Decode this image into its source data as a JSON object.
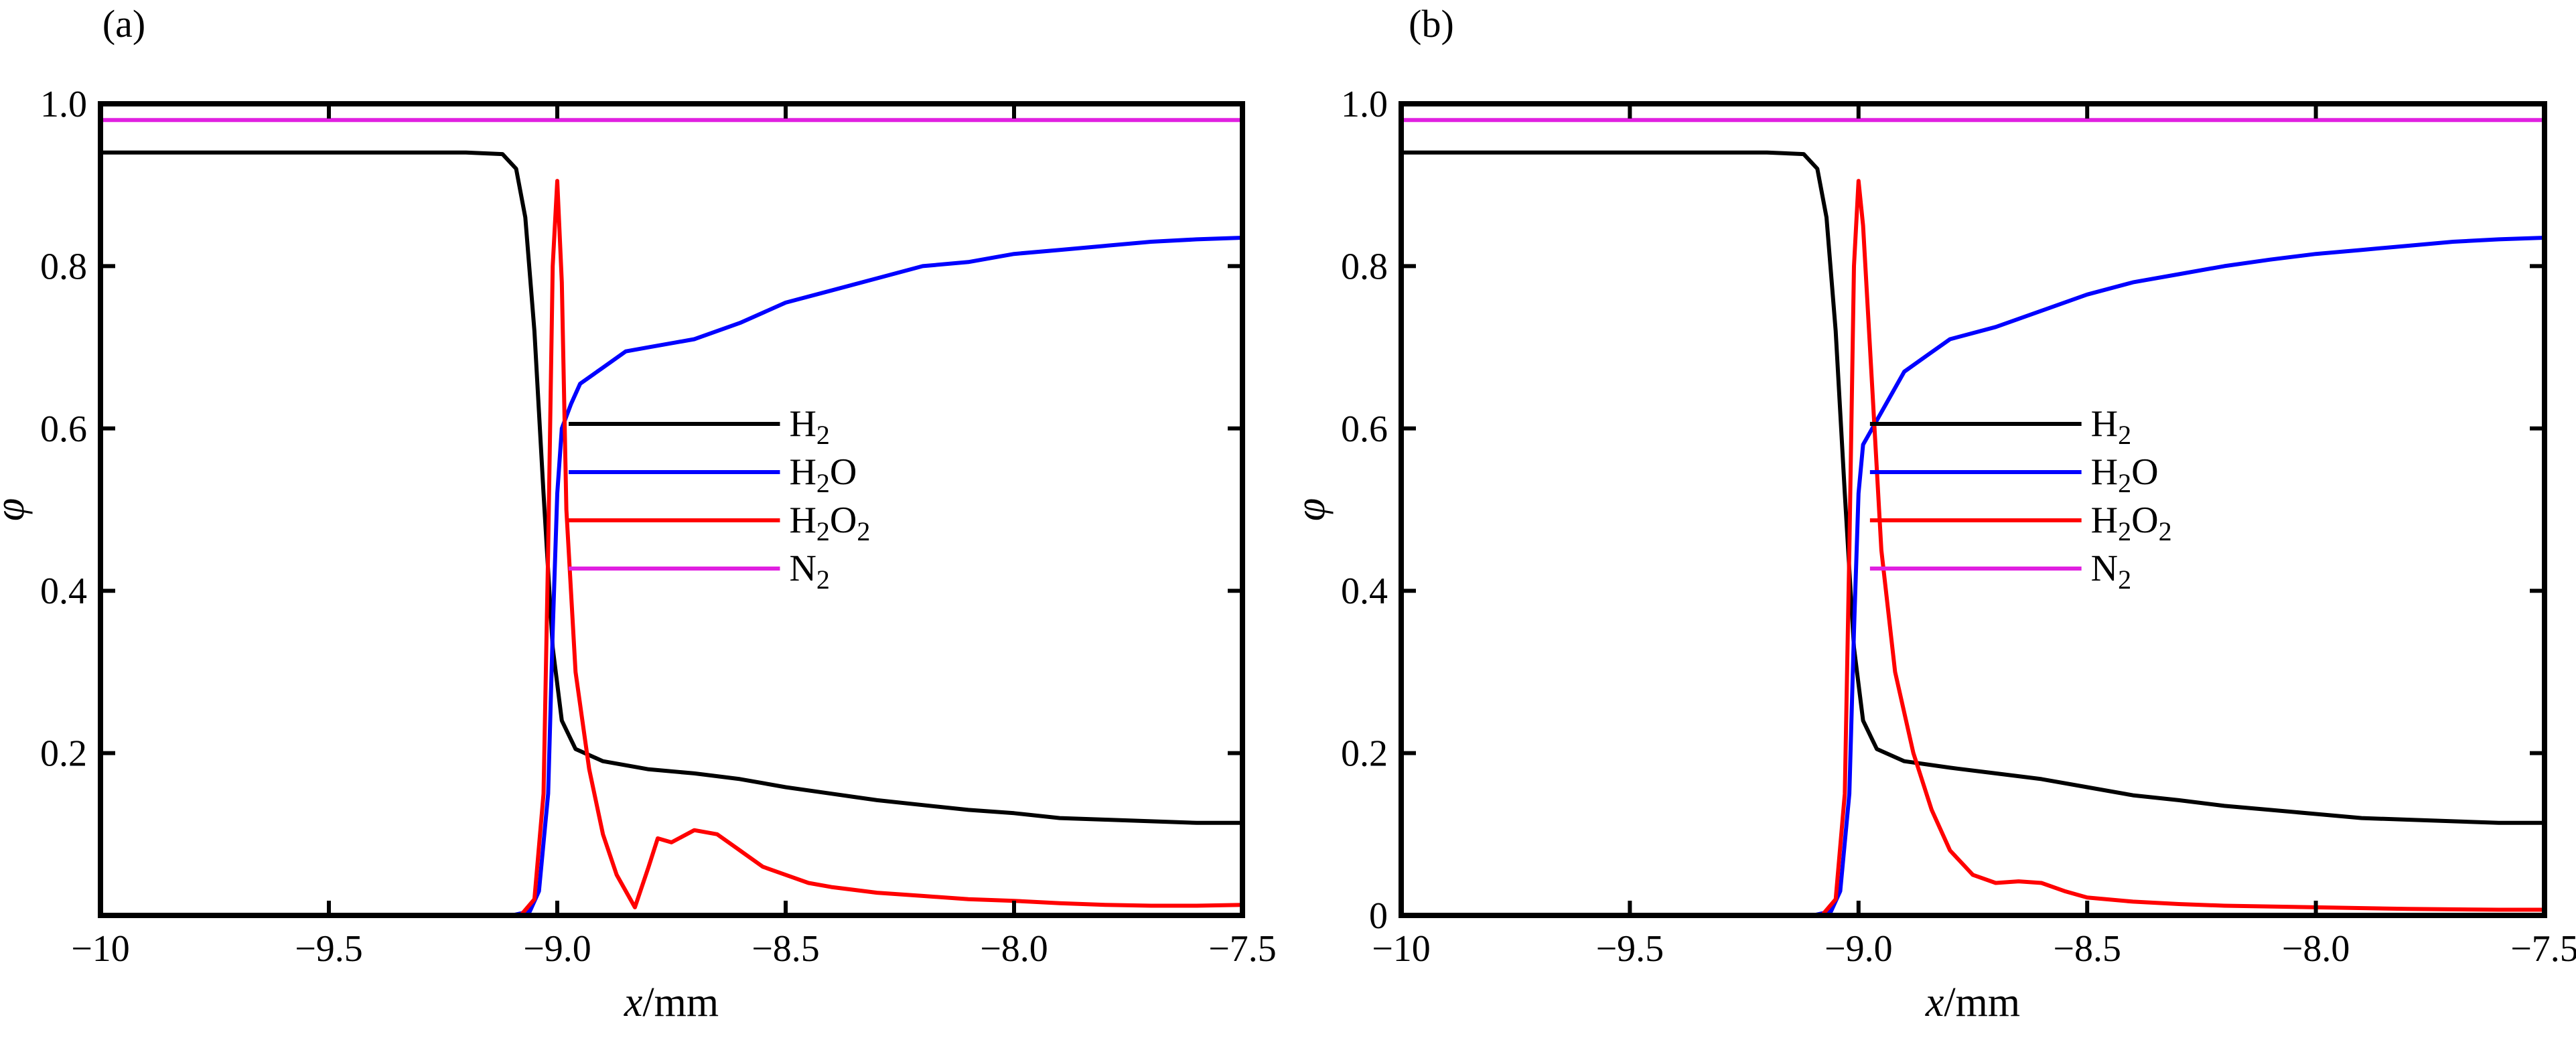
{
  "chart_data": [
    {
      "panel_label": "(a)",
      "type": "line",
      "xlabel_var": "x",
      "xlabel_unit": "/mm",
      "ylabel": "φ",
      "xlim": [
        -10,
        -7.5
      ],
      "ylim": [
        0,
        1.0
      ],
      "x_ticks": [
        "−10",
        "−9.5",
        "−9.0",
        "−8.5",
        "−8.0",
        "−7.5"
      ],
      "x_tick_values": [
        -10,
        -9.5,
        -9.0,
        -8.5,
        -8.0,
        -7.5
      ],
      "y_ticks": [
        "0.2",
        "0.4",
        "0.6",
        "0.8",
        "1.0"
      ],
      "y_tick_values": [
        0.2,
        0.4,
        0.6,
        0.8,
        1.0
      ],
      "legend_position": "center-right",
      "series": [
        {
          "name": "H2",
          "label_main": "H",
          "label_sub": "2",
          "label_tail": "",
          "color": "#000000",
          "points": [
            [
              -10,
              0.94
            ],
            [
              -9.5,
              0.94
            ],
            [
              -9.2,
              0.94
            ],
            [
              -9.12,
              0.938
            ],
            [
              -9.09,
              0.92
            ],
            [
              -9.07,
              0.86
            ],
            [
              -9.05,
              0.72
            ],
            [
              -9.03,
              0.52
            ],
            [
              -9.01,
              0.33
            ],
            [
              -8.99,
              0.24
            ],
            [
              -8.96,
              0.205
            ],
            [
              -8.9,
              0.19
            ],
            [
              -8.8,
              0.18
            ],
            [
              -8.7,
              0.175
            ],
            [
              -8.6,
              0.168
            ],
            [
              -8.5,
              0.158
            ],
            [
              -8.4,
              0.15
            ],
            [
              -8.3,
              0.142
            ],
            [
              -8.2,
              0.136
            ],
            [
              -8.1,
              0.13
            ],
            [
              -8.0,
              0.126
            ],
            [
              -7.9,
              0.12
            ],
            [
              -7.8,
              0.118
            ],
            [
              -7.7,
              0.116
            ],
            [
              -7.6,
              0.114
            ],
            [
              -7.5,
              0.114
            ]
          ]
        },
        {
          "name": "H2O",
          "label_main": "H",
          "label_sub": "2",
          "label_tail": "O",
          "color": "#0000ff",
          "points": [
            [
              -10,
              0.0
            ],
            [
              -9.5,
              0.0
            ],
            [
              -9.1,
              0.0
            ],
            [
              -9.06,
              0.005
            ],
            [
              -9.04,
              0.03
            ],
            [
              -9.02,
              0.15
            ],
            [
              -9.01,
              0.35
            ],
            [
              -9.0,
              0.52
            ],
            [
              -8.99,
              0.6
            ],
            [
              -8.97,
              0.63
            ],
            [
              -8.95,
              0.655
            ],
            [
              -8.9,
              0.675
            ],
            [
              -8.85,
              0.695
            ],
            [
              -8.8,
              0.7
            ],
            [
              -8.7,
              0.71
            ],
            [
              -8.6,
              0.73
            ],
            [
              -8.5,
              0.755
            ],
            [
              -8.4,
              0.77
            ],
            [
              -8.3,
              0.785
            ],
            [
              -8.2,
              0.8
            ],
            [
              -8.1,
              0.805
            ],
            [
              -8.0,
              0.815
            ],
            [
              -7.9,
              0.82
            ],
            [
              -7.8,
              0.825
            ],
            [
              -7.7,
              0.83
            ],
            [
              -7.6,
              0.833
            ],
            [
              -7.5,
              0.835
            ]
          ]
        },
        {
          "name": "H2O2",
          "label_main": "H",
          "label_sub": "2",
          "label_tail": "O",
          "label_sub2": "2",
          "color": "#ff0000",
          "points": [
            [
              -10,
              0.0
            ],
            [
              -9.5,
              0.0
            ],
            [
              -9.08,
              0.0
            ],
            [
              -9.05,
              0.02
            ],
            [
              -9.03,
              0.15
            ],
            [
              -9.02,
              0.45
            ],
            [
              -9.01,
              0.8
            ],
            [
              -9.0,
              0.905
            ],
            [
              -8.99,
              0.78
            ],
            [
              -8.98,
              0.5
            ],
            [
              -8.96,
              0.3
            ],
            [
              -8.93,
              0.18
            ],
            [
              -8.9,
              0.1
            ],
            [
              -8.87,
              0.05
            ],
            [
              -8.83,
              0.01
            ],
            [
              -8.8,
              0.06
            ],
            [
              -8.78,
              0.095
            ],
            [
              -8.75,
              0.09
            ],
            [
              -8.7,
              0.105
            ],
            [
              -8.65,
              0.1
            ],
            [
              -8.6,
              0.08
            ],
            [
              -8.55,
              0.06
            ],
            [
              -8.5,
              0.05
            ],
            [
              -8.45,
              0.04
            ],
            [
              -8.4,
              0.035
            ],
            [
              -8.3,
              0.028
            ],
            [
              -8.2,
              0.024
            ],
            [
              -8.1,
              0.02
            ],
            [
              -8.0,
              0.018
            ],
            [
              -7.9,
              0.015
            ],
            [
              -7.8,
              0.013
            ],
            [
              -7.7,
              0.012
            ],
            [
              -7.6,
              0.012
            ],
            [
              -7.5,
              0.013
            ]
          ]
        },
        {
          "name": "N2",
          "label_main": "N",
          "label_sub": "2",
          "label_tail": "",
          "color": "#e020e0",
          "points": [
            [
              -10,
              0.98
            ],
            [
              -7.5,
              0.98
            ]
          ]
        }
      ]
    },
    {
      "panel_label": "(b)",
      "type": "line",
      "xlabel_var": "x",
      "xlabel_unit": "/mm",
      "ylabel": "φ",
      "xlim": [
        -10,
        -7.5
      ],
      "ylim": [
        0,
        1.0
      ],
      "x_ticks": [
        "−10",
        "−9.5",
        "−9.0",
        "−8.5",
        "−8.0",
        "−7.5"
      ],
      "x_tick_values": [
        -10,
        -9.5,
        -9.0,
        -8.5,
        -8.0,
        -7.5
      ],
      "y_ticks": [
        "0",
        "0.2",
        "0.4",
        "0.6",
        "0.8",
        "1.0"
      ],
      "y_tick_values": [
        0,
        0.2,
        0.4,
        0.6,
        0.8,
        1.0
      ],
      "legend_position": "center-right",
      "series": [
        {
          "name": "H2",
          "label_main": "H",
          "label_sub": "2",
          "label_tail": "",
          "color": "#000000",
          "points": [
            [
              -10,
              0.94
            ],
            [
              -9.5,
              0.94
            ],
            [
              -9.2,
              0.94
            ],
            [
              -9.12,
              0.938
            ],
            [
              -9.09,
              0.92
            ],
            [
              -9.07,
              0.86
            ],
            [
              -9.05,
              0.72
            ],
            [
              -9.03,
              0.52
            ],
            [
              -9.01,
              0.33
            ],
            [
              -8.99,
              0.24
            ],
            [
              -8.96,
              0.205
            ],
            [
              -8.9,
              0.19
            ],
            [
              -8.8,
              0.182
            ],
            [
              -8.7,
              0.175
            ],
            [
              -8.6,
              0.168
            ],
            [
              -8.5,
              0.158
            ],
            [
              -8.4,
              0.148
            ],
            [
              -8.3,
              0.142
            ],
            [
              -8.2,
              0.135
            ],
            [
              -8.1,
              0.13
            ],
            [
              -8.0,
              0.125
            ],
            [
              -7.9,
              0.12
            ],
            [
              -7.8,
              0.118
            ],
            [
              -7.7,
              0.116
            ],
            [
              -7.6,
              0.114
            ],
            [
              -7.5,
              0.114
            ]
          ]
        },
        {
          "name": "H2O",
          "label_main": "H",
          "label_sub": "2",
          "label_tail": "O",
          "color": "#0000ff",
          "points": [
            [
              -10,
              0.0
            ],
            [
              -9.5,
              0.0
            ],
            [
              -9.1,
              0.0
            ],
            [
              -9.06,
              0.005
            ],
            [
              -9.04,
              0.03
            ],
            [
              -9.02,
              0.15
            ],
            [
              -9.01,
              0.35
            ],
            [
              -9.0,
              0.52
            ],
            [
              -8.99,
              0.58
            ],
            [
              -8.97,
              0.6
            ],
            [
              -8.95,
              0.62
            ],
            [
              -8.9,
              0.67
            ],
            [
              -8.85,
              0.69
            ],
            [
              -8.8,
              0.71
            ],
            [
              -8.7,
              0.725
            ],
            [
              -8.6,
              0.745
            ],
            [
              -8.5,
              0.765
            ],
            [
              -8.4,
              0.78
            ],
            [
              -8.3,
              0.79
            ],
            [
              -8.2,
              0.8
            ],
            [
              -8.1,
              0.808
            ],
            [
              -8.0,
              0.815
            ],
            [
              -7.9,
              0.82
            ],
            [
              -7.8,
              0.825
            ],
            [
              -7.7,
              0.83
            ],
            [
              -7.6,
              0.833
            ],
            [
              -7.5,
              0.835
            ]
          ]
        },
        {
          "name": "H2O2",
          "label_main": "H",
          "label_sub": "2",
          "label_tail": "O",
          "label_sub2": "2",
          "color": "#ff0000",
          "points": [
            [
              -10,
              0.0
            ],
            [
              -9.5,
              0.0
            ],
            [
              -9.08,
              0.0
            ],
            [
              -9.05,
              0.02
            ],
            [
              -9.03,
              0.15
            ],
            [
              -9.02,
              0.45
            ],
            [
              -9.01,
              0.8
            ],
            [
              -9.0,
              0.905
            ],
            [
              -8.99,
              0.85
            ],
            [
              -8.97,
              0.65
            ],
            [
              -8.95,
              0.45
            ],
            [
              -8.92,
              0.3
            ],
            [
              -8.88,
              0.2
            ],
            [
              -8.84,
              0.13
            ],
            [
              -8.8,
              0.08
            ],
            [
              -8.75,
              0.05
            ],
            [
              -8.7,
              0.04
            ],
            [
              -8.65,
              0.042
            ],
            [
              -8.6,
              0.04
            ],
            [
              -8.55,
              0.03
            ],
            [
              -8.5,
              0.022
            ],
            [
              -8.4,
              0.017
            ],
            [
              -8.3,
              0.014
            ],
            [
              -8.2,
              0.012
            ],
            [
              -8.0,
              0.01
            ],
            [
              -7.8,
              0.008
            ],
            [
              -7.6,
              0.007
            ],
            [
              -7.5,
              0.007
            ]
          ]
        },
        {
          "name": "N2",
          "label_main": "N",
          "label_sub": "2",
          "label_tail": "",
          "color": "#e020e0",
          "points": [
            [
              -10,
              0.98
            ],
            [
              -7.5,
              0.98
            ]
          ]
        }
      ]
    }
  ]
}
